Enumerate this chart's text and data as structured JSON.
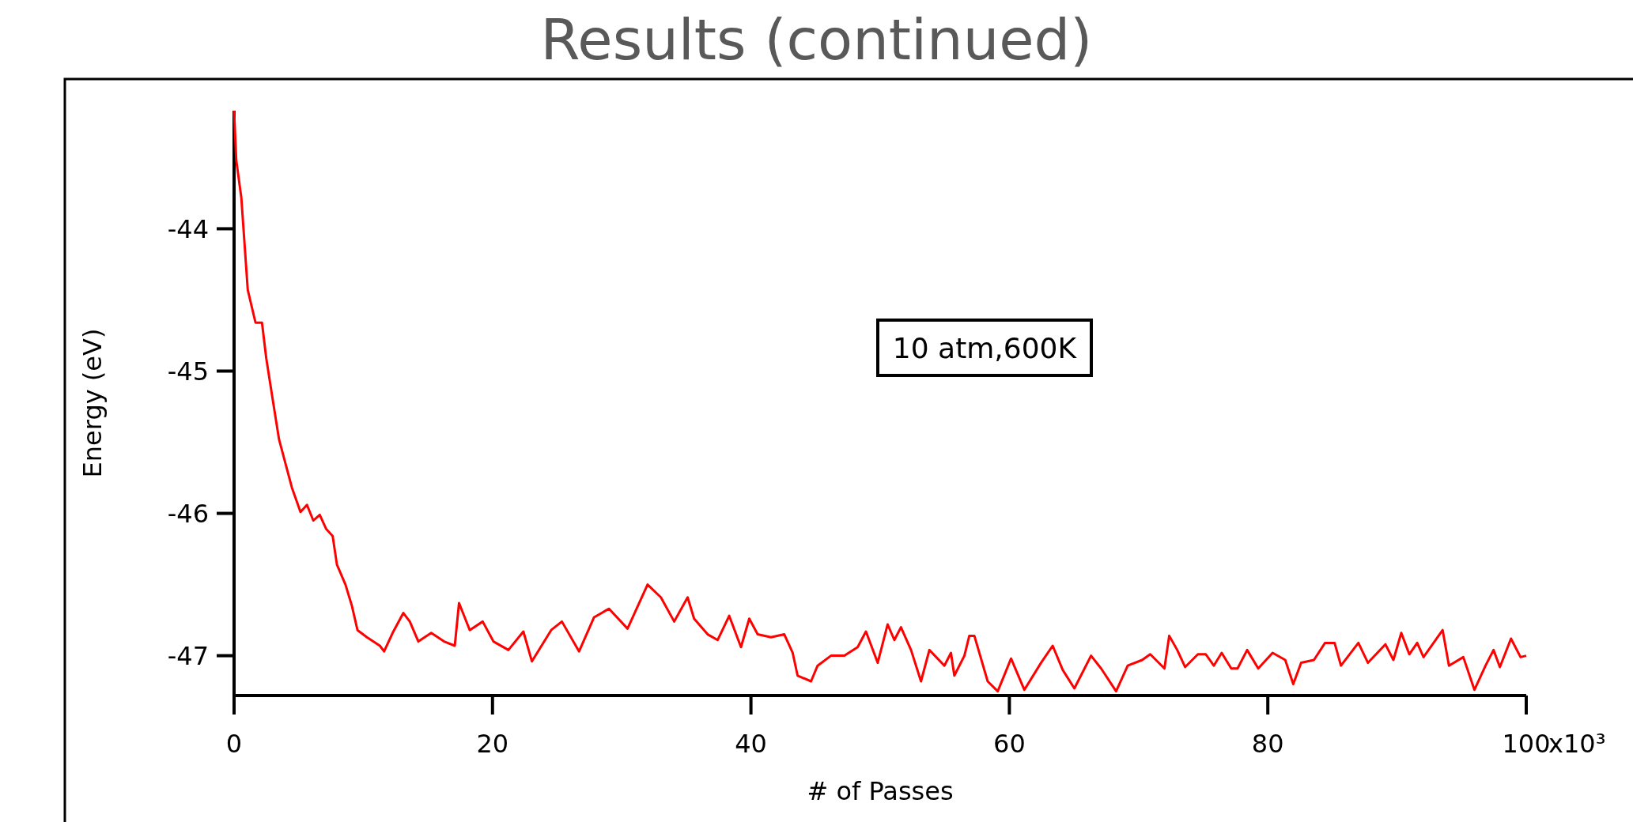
{
  "chart_data": {
    "type": "line",
    "title": "Results (continued)",
    "xlabel": "# of Passes",
    "ylabel": "Energy (eV)",
    "annotations": [
      "10 atm,600K",
      "x10³"
    ],
    "xlim": [
      0,
      100
    ],
    "ylim": [
      -47.28,
      -43.17
    ],
    "xticks": [
      0,
      20,
      40,
      60,
      80,
      100
    ],
    "yticks": [
      -44,
      -45,
      -46,
      -47
    ],
    "x": [
      0,
      0.17,
      0.56,
      1.06,
      1.66,
      2.16,
      2.49,
      2.99,
      3.48,
      3.98,
      4.48,
      5.14,
      5.64,
      6.13,
      6.63,
      7.13,
      7.63,
      7.96,
      8.62,
      9.12,
      9.55,
      10.28,
      11.28,
      11.61,
      12.27,
      13.1,
      13.6,
      14.26,
      15.26,
      16.25,
      17.08,
      17.41,
      18.24,
      19.24,
      20.07,
      21.23,
      22.39,
      23.05,
      24.54,
      25.37,
      26.7,
      27.86,
      29.02,
      30.45,
      32.0,
      33.03,
      34.06,
      35.1,
      35.6,
      36.65,
      37.42,
      38.32,
      39.23,
      39.87,
      40.52,
      41.55,
      42.58,
      43.23,
      43.61,
      44.65,
      45.16,
      46.19,
      47.23,
      48.26,
      48.9,
      49.81,
      50.58,
      51.1,
      51.61,
      52.39,
      53.16,
      53.81,
      54.97,
      55.48,
      55.74,
      56.52,
      56.9,
      57.29,
      58.32,
      59.1,
      60.13,
      61.16,
      62.45,
      63.35,
      64.13,
      65.03,
      66.32,
      67.1,
      68.26,
      69.16,
      70.28,
      70.9,
      72.0,
      72.37,
      72.99,
      73.6,
      74.59,
      75.2,
      75.82,
      76.43,
      77.17,
      77.66,
      78.4,
      79.26,
      80.37,
      81.35,
      81.97,
      82.58,
      83.57,
      84.43,
      85.17,
      85.66,
      87.01,
      87.75,
      89.1,
      89.72,
      90.33,
      90.95,
      91.56,
      92.05,
      93.53,
      94.02,
      95.13,
      95.99,
      96.85,
      97.47,
      97.96,
      98.82,
      99.56,
      100
    ],
    "series": [
      {
        "color": "#ff0000",
        "values": [
          -43.17,
          -43.52,
          -43.78,
          -44.43,
          -44.66,
          -44.66,
          -44.91,
          -45.2,
          -45.48,
          -45.65,
          -45.82,
          -45.99,
          -45.94,
          -46.05,
          -46.01,
          -46.11,
          -46.16,
          -46.36,
          -46.5,
          -46.65,
          -46.82,
          -46.87,
          -46.93,
          -46.97,
          -46.84,
          -46.7,
          -46.76,
          -46.9,
          -46.84,
          -46.9,
          -46.93,
          -46.63,
          -46.82,
          -46.76,
          -46.9,
          -46.96,
          -46.83,
          -47.04,
          -46.82,
          -46.76,
          -46.97,
          -46.73,
          -46.67,
          -46.81,
          -46.5,
          -46.59,
          -46.76,
          -46.59,
          -46.74,
          -46.85,
          -46.89,
          -46.72,
          -46.94,
          -46.74,
          -46.85,
          -46.87,
          -46.85,
          -46.98,
          -47.14,
          -47.18,
          -47.07,
          -47.0,
          -47.0,
          -46.94,
          -46.83,
          -47.05,
          -46.78,
          -46.89,
          -46.8,
          -46.96,
          -47.18,
          -46.96,
          -47.07,
          -46.98,
          -47.14,
          -47.0,
          -46.86,
          -46.86,
          -47.18,
          -47.25,
          -47.02,
          -47.24,
          -47.05,
          -46.93,
          -47.1,
          -47.23,
          -47.0,
          -47.09,
          -47.25,
          -47.07,
          -47.03,
          -46.99,
          -47.09,
          -46.86,
          -46.96,
          -47.08,
          -46.99,
          -46.99,
          -47.07,
          -46.98,
          -47.09,
          -47.09,
          -46.96,
          -47.09,
          -46.98,
          -47.03,
          -47.2,
          -47.05,
          -47.03,
          -46.91,
          -46.91,
          -47.07,
          -46.91,
          -47.05,
          -46.92,
          -47.03,
          -46.84,
          -46.99,
          -46.91,
          -47.01,
          -46.82,
          -47.07,
          -47.01,
          -47.24,
          -47.07,
          -46.96,
          -47.08,
          -46.88,
          -47.01,
          -47.0
        ]
      }
    ]
  }
}
